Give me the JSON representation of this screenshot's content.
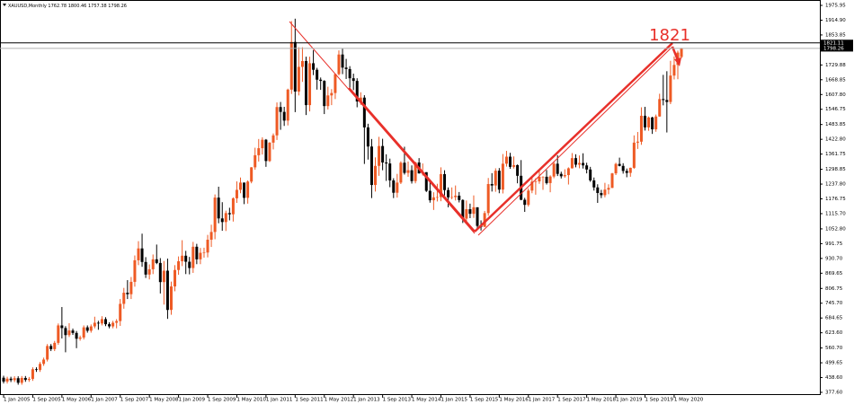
{
  "chart_data": {
    "type": "candlestick",
    "symbol": "XAUUSD,Monthly",
    "annotation": "1821",
    "up_color": "#ee5a24",
    "down_color": "#000000",
    "grid": false,
    "ylim": [
      377.6,
      1975.95
    ],
    "yticks": [
      {
        "value": 1975.95,
        "label": "1975.95"
      },
      {
        "value": 1914.9,
        "label": "1914.90"
      },
      {
        "value": 1853.85,
        "label": "1853.85"
      },
      {
        "value": 1729.88,
        "label": "1729.88"
      },
      {
        "value": 1668.85,
        "label": "1668.85"
      },
      {
        "value": 1607.8,
        "label": "1607.80"
      },
      {
        "value": 1546.75,
        "label": "1546.75"
      },
      {
        "value": 1483.85,
        "label": "1483.85"
      },
      {
        "value": 1422.8,
        "label": "1422.80"
      },
      {
        "value": 1361.75,
        "label": "1361.75"
      },
      {
        "value": 1298.85,
        "label": "1298.85"
      },
      {
        "value": 1237.8,
        "label": "1237.80"
      },
      {
        "value": 1176.75,
        "label": "1176.75"
      },
      {
        "value": 1115.7,
        "label": "1115.70"
      },
      {
        "value": 1052.8,
        "label": "1052.80"
      },
      {
        "value": 991.75,
        "label": "991.75"
      },
      {
        "value": 930.7,
        "label": "930.70"
      },
      {
        "value": 869.65,
        "label": "869.65"
      },
      {
        "value": 806.75,
        "label": "806.75"
      },
      {
        "value": 745.7,
        "label": "745.70"
      },
      {
        "value": 684.65,
        "label": "684.65"
      },
      {
        "value": 623.6,
        "label": "623.60"
      },
      {
        "value": 560.7,
        "label": "560.70"
      },
      {
        "value": 499.65,
        "label": "499.65"
      },
      {
        "value": 438.6,
        "label": "438.60"
      },
      {
        "value": 377.6,
        "label": "377.60"
      }
    ],
    "levels": [
      {
        "value": 1821.11,
        "color": "#000000"
      },
      {
        "value": 1798.26,
        "color": "#b0b0b0"
      }
    ],
    "xticks": [
      {
        "value": 0,
        "label": "1 Jan 2005"
      },
      {
        "value": 8,
        "label": "1 Sep 2005"
      },
      {
        "value": 16,
        "label": "1 May 2006"
      },
      {
        "value": 24,
        "label": "1 Jan 2007"
      },
      {
        "value": 32,
        "label": "1 Sep 2007"
      },
      {
        "value": 40,
        "label": "1 May 2008"
      },
      {
        "value": 48,
        "label": "1 Jan 2009"
      },
      {
        "value": 56,
        "label": "1 Sep 2009"
      },
      {
        "value": 64,
        "label": "1 May 2010"
      },
      {
        "value": 72,
        "label": "1 Jan 2011"
      },
      {
        "value": 80,
        "label": "1 Sep 2011"
      },
      {
        "value": 88,
        "label": "1 May 2012"
      },
      {
        "value": 96,
        "label": "1 Jan 2013"
      },
      {
        "value": 104,
        "label": "1 Sep 2013"
      },
      {
        "value": 112,
        "label": "1 May 2014"
      },
      {
        "value": 120,
        "label": "1 Jan 2015"
      },
      {
        "value": 128,
        "label": "1 Sep 2015"
      },
      {
        "value": 136,
        "label": "1 May 2016"
      },
      {
        "value": 144,
        "label": "1 Jan 2017"
      },
      {
        "value": 152,
        "label": "1 Sep 2017"
      },
      {
        "value": 160,
        "label": "1 May 2018"
      },
      {
        "value": 168,
        "label": "1 Jan 2019"
      },
      {
        "value": 176,
        "label": "1 Sep 2019"
      },
      {
        "value": 184,
        "label": "1 May 2020"
      }
    ],
    "candles": [
      [
        438,
        446,
        414,
        422
      ],
      [
        422,
        442,
        414,
        434
      ],
      [
        434,
        442,
        420,
        428
      ],
      [
        428,
        444,
        420,
        436
      ],
      [
        436,
        444,
        409,
        417
      ],
      [
        417,
        445,
        409,
        437
      ],
      [
        437,
        445,
        421,
        429
      ],
      [
        429,
        441,
        421,
        433
      ],
      [
        433,
        481,
        425,
        473
      ],
      [
        473,
        481,
        462,
        470
      ],
      [
        470,
        503,
        462,
        495
      ],
      [
        495,
        521,
        487,
        513
      ],
      [
        513,
        577,
        505,
        569
      ],
      [
        569,
        577,
        548,
        556
      ],
      [
        556,
        590,
        548,
        582
      ],
      [
        582,
        662,
        574,
        654
      ],
      [
        654,
        730,
        600,
        643
      ],
      [
        643,
        651,
        543,
        614
      ],
      [
        614,
        663,
        606,
        633
      ],
      [
        633,
        641,
        615,
        623
      ],
      [
        623,
        631,
        560,
        599
      ],
      [
        599,
        612,
        591,
        604
      ],
      [
        604,
        654,
        596,
        646
      ],
      [
        646,
        654,
        624,
        632
      ],
      [
        632,
        658,
        624,
        650
      ],
      [
        650,
        690,
        642,
        665
      ],
      [
        665,
        673,
        636,
        662
      ],
      [
        662,
        692,
        654,
        680
      ],
      [
        680,
        688,
        651,
        659
      ],
      [
        659,
        667,
        642,
        650
      ],
      [
        650,
        673,
        642,
        665
      ],
      [
        665,
        680,
        642,
        672
      ],
      [
        672,
        763,
        652,
        743
      ],
      [
        743,
        809,
        723,
        789
      ],
      [
        789,
        841,
        763,
        783
      ],
      [
        783,
        854,
        763,
        834
      ],
      [
        834,
        943,
        814,
        923
      ],
      [
        923,
        1002,
        903,
        972
      ],
      [
        972,
        1033,
        896,
        916
      ],
      [
        916,
        936,
        850,
        864
      ],
      [
        864,
        906,
        844,
        886
      ],
      [
        886,
        947,
        866,
        927
      ],
      [
        927,
        988,
        907,
        912
      ],
      [
        912,
        932,
        786,
        833
      ],
      [
        833,
        920,
        740,
        880
      ],
      [
        880,
        930,
        681,
        718
      ],
      [
        718,
        835,
        698,
        815
      ],
      [
        815,
        903,
        795,
        883
      ],
      [
        883,
        939,
        863,
        919
      ],
      [
        919,
        1006,
        899,
        942
      ],
      [
        942,
        962,
        866,
        917
      ],
      [
        917,
        937,
        865,
        891
      ],
      [
        891,
        999,
        871,
        979
      ],
      [
        979,
        991,
        907,
        927
      ],
      [
        927,
        974,
        907,
        954
      ],
      [
        954,
        975,
        934,
        955
      ],
      [
        955,
        1028,
        935,
        1008
      ],
      [
        1008,
        1070,
        978,
        1040
      ],
      [
        1040,
        1195,
        1010,
        1182
      ],
      [
        1182,
        1227,
        1076,
        1096
      ],
      [
        1096,
        1163,
        1045,
        1081
      ],
      [
        1081,
        1128,
        1044,
        1118
      ],
      [
        1118,
        1140,
        1088,
        1113
      ],
      [
        1113,
        1183,
        1083,
        1179
      ],
      [
        1179,
        1249,
        1160,
        1214
      ],
      [
        1214,
        1265,
        1200,
        1244
      ],
      [
        1244,
        1244,
        1155,
        1181
      ],
      [
        1181,
        1253,
        1157,
        1248
      ],
      [
        1248,
        1308,
        1241,
        1307
      ],
      [
        1307,
        1388,
        1297,
        1357
      ],
      [
        1357,
        1424,
        1331,
        1386
      ],
      [
        1386,
        1431,
        1360,
        1421
      ],
      [
        1421,
        1424,
        1309,
        1333
      ],
      [
        1333,
        1411,
        1329,
        1409
      ],
      [
        1409,
        1447,
        1381,
        1439
      ],
      [
        1439,
        1575,
        1420,
        1556
      ],
      [
        1556,
        1577,
        1462,
        1536
      ],
      [
        1536,
        1557,
        1478,
        1500
      ],
      [
        1500,
        1632,
        1480,
        1628
      ],
      [
        1628,
        1911,
        1610,
        1825
      ],
      [
        1825,
        1921,
        1535,
        1620
      ],
      [
        1620,
        1803,
        1604,
        1722
      ],
      [
        1722,
        1803,
        1660,
        1746
      ],
      [
        1746,
        1764,
        1523,
        1564
      ],
      [
        1564,
        1764,
        1538,
        1737
      ],
      [
        1737,
        1791,
        1688,
        1710
      ],
      [
        1710,
        1718,
        1628,
        1669
      ],
      [
        1669,
        1678,
        1627,
        1664
      ],
      [
        1664,
        1667,
        1527,
        1560
      ],
      [
        1560,
        1640,
        1546,
        1604
      ],
      [
        1604,
        1630,
        1564,
        1614
      ],
      [
        1614,
        1694,
        1589,
        1692
      ],
      [
        1692,
        1790,
        1687,
        1773
      ],
      [
        1773,
        1797,
        1692,
        1719
      ],
      [
        1719,
        1755,
        1672,
        1713
      ],
      [
        1713,
        1725,
        1636,
        1675
      ],
      [
        1675,
        1694,
        1626,
        1664
      ],
      [
        1664,
        1675,
        1555,
        1579
      ],
      [
        1579,
        1617,
        1565,
        1595
      ],
      [
        1595,
        1605,
        1321,
        1472
      ],
      [
        1472,
        1487,
        1339,
        1393
      ],
      [
        1393,
        1424,
        1180,
        1234
      ],
      [
        1234,
        1348,
        1207,
        1313
      ],
      [
        1313,
        1433,
        1272,
        1395
      ],
      [
        1395,
        1425,
        1295,
        1327
      ],
      [
        1327,
        1361,
        1251,
        1323
      ],
      [
        1323,
        1343,
        1225,
        1253
      ],
      [
        1253,
        1262,
        1180,
        1202
      ],
      [
        1202,
        1280,
        1182,
        1244
      ],
      [
        1244,
        1332,
        1238,
        1326
      ],
      [
        1326,
        1392,
        1277,
        1284
      ],
      [
        1284,
        1331,
        1268,
        1295
      ],
      [
        1295,
        1315,
        1240,
        1250
      ],
      [
        1250,
        1330,
        1241,
        1327
      ],
      [
        1327,
        1345,
        1281,
        1282
      ],
      [
        1282,
        1323,
        1273,
        1287
      ],
      [
        1287,
        1287,
        1205,
        1210
      ],
      [
        1210,
        1255,
        1161,
        1171
      ],
      [
        1171,
        1204,
        1131,
        1183
      ],
      [
        1183,
        1239,
        1166,
        1184
      ],
      [
        1184,
        1307,
        1167,
        1279
      ],
      [
        1279,
        1295,
        1191,
        1213
      ],
      [
        1213,
        1224,
        1142,
        1183
      ],
      [
        1183,
        1224,
        1175,
        1184
      ],
      [
        1184,
        1232,
        1170,
        1190
      ],
      [
        1190,
        1205,
        1162,
        1172
      ],
      [
        1172,
        1175,
        1077,
        1095
      ],
      [
        1095,
        1170,
        1080,
        1134
      ],
      [
        1134,
        1157,
        1097,
        1115
      ],
      [
        1115,
        1191,
        1098,
        1142
      ],
      [
        1142,
        1142,
        1052,
        1065
      ],
      [
        1065,
        1088,
        1046,
        1061
      ],
      [
        1061,
        1127,
        1061,
        1118
      ],
      [
        1118,
        1263,
        1107,
        1238
      ],
      [
        1238,
        1283,
        1207,
        1232
      ],
      [
        1232,
        1303,
        1206,
        1293
      ],
      [
        1293,
        1304,
        1200,
        1215
      ],
      [
        1215,
        1362,
        1199,
        1322
      ],
      [
        1322,
        1375,
        1310,
        1351
      ],
      [
        1351,
        1367,
        1301,
        1309
      ],
      [
        1309,
        1352,
        1302,
        1316
      ],
      [
        1316,
        1319,
        1241,
        1272
      ],
      [
        1272,
        1337,
        1171,
        1173
      ],
      [
        1173,
        1181,
        1123,
        1152
      ],
      [
        1152,
        1220,
        1145,
        1211
      ],
      [
        1211,
        1264,
        1200,
        1248
      ],
      [
        1248,
        1262,
        1194,
        1249
      ],
      [
        1249,
        1295,
        1239,
        1268
      ],
      [
        1268,
        1270,
        1214,
        1268
      ],
      [
        1268,
        1296,
        1236,
        1242
      ],
      [
        1242,
        1274,
        1204,
        1269
      ],
      [
        1269,
        1331,
        1262,
        1322
      ],
      [
        1322,
        1357,
        1271,
        1280
      ],
      [
        1280,
        1289,
        1261,
        1270
      ],
      [
        1270,
        1299,
        1264,
        1275
      ],
      [
        1275,
        1307,
        1236,
        1303
      ],
      [
        1303,
        1366,
        1302,
        1345
      ],
      [
        1345,
        1361,
        1307,
        1318
      ],
      [
        1318,
        1356,
        1303,
        1325
      ],
      [
        1325,
        1365,
        1302,
        1315
      ],
      [
        1315,
        1326,
        1282,
        1298
      ],
      [
        1298,
        1309,
        1247,
        1253
      ],
      [
        1253,
        1265,
        1211,
        1224
      ],
      [
        1224,
        1237,
        1160,
        1201
      ],
      [
        1201,
        1214,
        1180,
        1192
      ],
      [
        1192,
        1243,
        1183,
        1215
      ],
      [
        1215,
        1237,
        1196,
        1222
      ],
      [
        1222,
        1284,
        1221,
        1282
      ],
      [
        1282,
        1326,
        1275,
        1321
      ],
      [
        1321,
        1347,
        1311,
        1313
      ],
      [
        1313,
        1324,
        1281,
        1292
      ],
      [
        1292,
        1302,
        1266,
        1284
      ],
      [
        1284,
        1306,
        1268,
        1305
      ],
      [
        1305,
        1439,
        1301,
        1409
      ],
      [
        1409,
        1453,
        1383,
        1413
      ],
      [
        1413,
        1555,
        1400,
        1520
      ],
      [
        1520,
        1557,
        1459,
        1472
      ],
      [
        1472,
        1517,
        1458,
        1513
      ],
      [
        1513,
        1516,
        1445,
        1464
      ],
      [
        1464,
        1525,
        1454,
        1517
      ],
      [
        1517,
        1611,
        1516,
        1589
      ],
      [
        1589,
        1689,
        1563,
        1585
      ],
      [
        1585,
        1704,
        1451,
        1577
      ],
      [
        1577,
        1747,
        1568,
        1686
      ],
      [
        1686,
        1765,
        1670,
        1730
      ],
      [
        1730,
        1789,
        1671,
        1781
      ],
      [
        1762.78,
        1800.46,
        1757.38,
        1798.26
      ]
    ]
  }
}
